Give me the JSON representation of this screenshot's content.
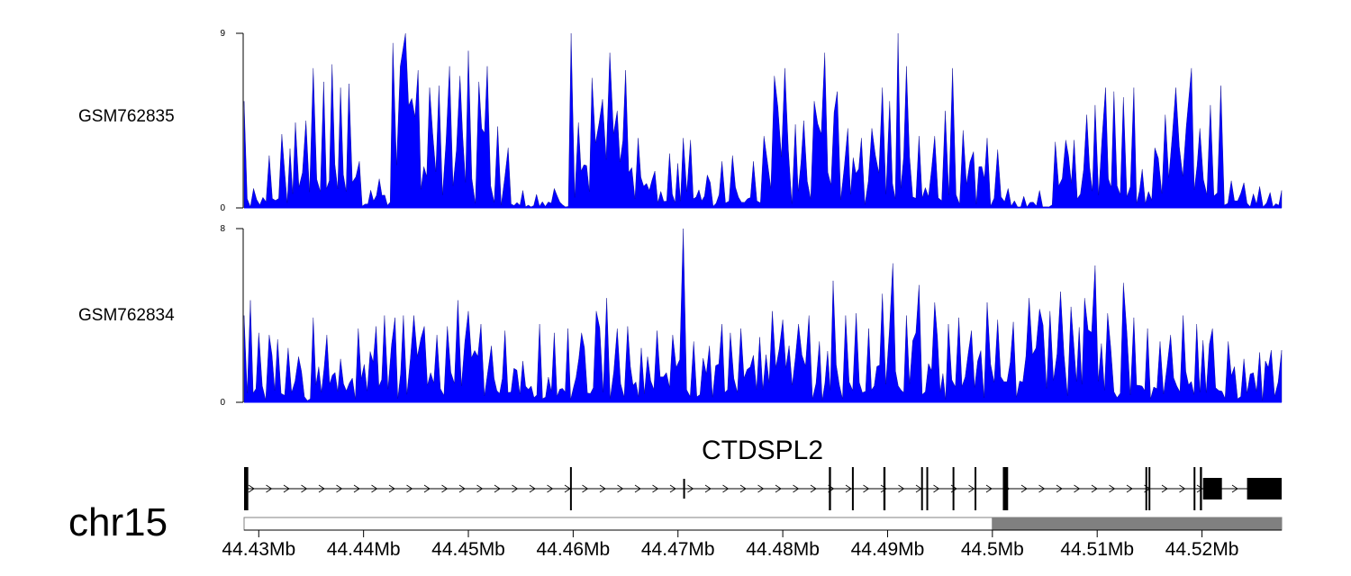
{
  "chart_data": {
    "type": "area",
    "chromosome": "chr15",
    "x_range_mb": [
      44.4286,
      44.5276
    ],
    "x_ticks": [
      {
        "value": 44.43,
        "label": "44.43Mb"
      },
      {
        "value": 44.44,
        "label": "44.44Mb"
      },
      {
        "value": 44.45,
        "label": "44.45Mb"
      },
      {
        "value": 44.46,
        "label": "44.46Mb"
      },
      {
        "value": 44.47,
        "label": "44.47Mb"
      },
      {
        "value": 44.48,
        "label": "44.48Mb"
      },
      {
        "value": 44.49,
        "label": "44.49Mb"
      },
      {
        "value": 44.5,
        "label": "44.5Mb"
      },
      {
        "value": 44.51,
        "label": "44.51Mb"
      },
      {
        "value": 44.52,
        "label": "44.52Mb"
      }
    ],
    "tracks": [
      {
        "name": "GSM762835",
        "ylim": [
          0,
          9
        ],
        "y_ticks": [
          "0",
          "9"
        ],
        "fill_color": "#0000ff",
        "peaks": [
          [
            44.4286,
            5.5
          ],
          [
            44.4295,
            1.0
          ],
          [
            44.431,
            2.7
          ],
          [
            44.4322,
            3.8
          ],
          [
            44.4335,
            4.4
          ],
          [
            44.4345,
            4.5
          ],
          [
            44.4352,
            7.2
          ],
          [
            44.4362,
            6.5
          ],
          [
            44.437,
            7.4
          ],
          [
            44.4378,
            6.2
          ],
          [
            44.4386,
            6.4
          ],
          [
            44.4396,
            2.4
          ],
          [
            44.4415,
            1.5
          ],
          [
            44.4428,
            8.5
          ],
          [
            44.4435,
            7.3
          ],
          [
            44.444,
            9.0
          ],
          [
            44.4452,
            7.1
          ],
          [
            44.4463,
            6.2
          ],
          [
            44.4472,
            6.3
          ],
          [
            44.4482,
            7.3
          ],
          [
            44.4492,
            6.8
          ],
          [
            44.45,
            8.1
          ],
          [
            44.451,
            6.5
          ],
          [
            44.4518,
            7.3
          ],
          [
            44.4528,
            4.2
          ],
          [
            44.4538,
            3.1
          ],
          [
            44.4552,
            0.9
          ],
          [
            44.4565,
            0.7
          ],
          [
            44.4582,
            1.0
          ],
          [
            44.4598,
            9.0
          ],
          [
            44.4605,
            4.4
          ],
          [
            44.4618,
            6.7
          ],
          [
            44.4628,
            5.6
          ],
          [
            44.4635,
            8.0
          ],
          [
            44.4642,
            5.0
          ],
          [
            44.465,
            7.1
          ],
          [
            44.4662,
            3.6
          ],
          [
            44.4678,
            1.9
          ],
          [
            44.4692,
            2.8
          ],
          [
            44.4705,
            3.6
          ],
          [
            44.4712,
            3.5
          ],
          [
            44.4728,
            1.7
          ],
          [
            44.4742,
            2.4
          ],
          [
            44.4752,
            2.7
          ],
          [
            44.4772,
            2.4
          ],
          [
            44.4782,
            3.7
          ],
          [
            44.4792,
            6.8
          ],
          [
            44.4802,
            7.2
          ],
          [
            44.4812,
            4.3
          ],
          [
            44.482,
            4.5
          ],
          [
            44.483,
            5.5
          ],
          [
            44.484,
            8.0
          ],
          [
            44.4852,
            6.0
          ],
          [
            44.4862,
            4.1
          ],
          [
            44.4875,
            3.6
          ],
          [
            44.4885,
            4.1
          ],
          [
            44.4895,
            6.2
          ],
          [
            44.4902,
            5.5
          ],
          [
            44.491,
            9.0
          ],
          [
            44.4918,
            7.3
          ],
          [
            44.493,
            3.7
          ],
          [
            44.4945,
            3.7
          ],
          [
            44.4955,
            5.0
          ],
          [
            44.4962,
            7.2
          ],
          [
            44.4972,
            4.0
          ],
          [
            44.4982,
            2.9
          ],
          [
            44.4995,
            3.6
          ],
          [
            44.5005,
            3.0
          ],
          [
            44.5015,
            1.0
          ],
          [
            44.503,
            0.6
          ],
          [
            44.5045,
            0.9
          ],
          [
            44.506,
            3.4
          ],
          [
            44.507,
            3.5
          ],
          [
            44.5078,
            3.5
          ],
          [
            44.509,
            4.8
          ],
          [
            44.5098,
            5.3
          ],
          [
            44.5108,
            6.2
          ],
          [
            44.5116,
            6.0
          ],
          [
            44.5125,
            5.7
          ],
          [
            44.5135,
            6.2
          ],
          [
            44.5143,
            2.0
          ],
          [
            44.5155,
            3.1
          ],
          [
            44.5165,
            4.8
          ],
          [
            44.5175,
            6.2
          ],
          [
            44.5185,
            4.2
          ],
          [
            44.519,
            7.2
          ],
          [
            44.5198,
            4.1
          ],
          [
            44.5208,
            5.3
          ],
          [
            44.5218,
            6.3
          ],
          [
            44.5228,
            1.4
          ],
          [
            44.524,
            1.3
          ],
          [
            44.5255,
            1.1
          ],
          [
            44.5265,
            0.8
          ],
          [
            44.5276,
            0.9
          ]
        ]
      },
      {
        "name": "GSM762834",
        "ylim": [
          0,
          8
        ],
        "y_ticks": [
          "0",
          "8"
        ],
        "fill_color": "#0000ff",
        "peaks": [
          [
            44.4286,
            4.0
          ],
          [
            44.4292,
            4.7
          ],
          [
            44.43,
            3.2
          ],
          [
            44.431,
            3.1
          ],
          [
            44.4318,
            2.9
          ],
          [
            44.4328,
            2.5
          ],
          [
            44.4338,
            2.1
          ],
          [
            44.4352,
            3.9
          ],
          [
            44.4365,
            3.1
          ],
          [
            44.4378,
            2.0
          ],
          [
            44.4395,
            3.4
          ],
          [
            44.4412,
            3.5
          ],
          [
            44.442,
            4.0
          ],
          [
            44.443,
            3.9
          ],
          [
            44.4438,
            4.0
          ],
          [
            44.4448,
            4.0
          ],
          [
            44.4458,
            3.5
          ],
          [
            44.447,
            3.1
          ],
          [
            44.448,
            3.5
          ],
          [
            44.449,
            4.7
          ],
          [
            44.45,
            4.2
          ],
          [
            44.4512,
            3.6
          ],
          [
            44.4522,
            2.6
          ],
          [
            44.4535,
            3.3
          ],
          [
            44.4552,
            1.9
          ],
          [
            44.4568,
            3.6
          ],
          [
            44.4582,
            3.2
          ],
          [
            44.4595,
            3.4
          ],
          [
            44.4608,
            3.2
          ],
          [
            44.4622,
            4.2
          ],
          [
            44.4632,
            4.8
          ],
          [
            44.4642,
            3.4
          ],
          [
            44.4652,
            3.5
          ],
          [
            44.4665,
            2.5
          ],
          [
            44.468,
            3.3
          ],
          [
            44.4695,
            3.1
          ],
          [
            44.4705,
            8.0
          ],
          [
            44.4715,
            2.8
          ],
          [
            44.473,
            2.6
          ],
          [
            44.4742,
            3.6
          ],
          [
            44.475,
            3.2
          ],
          [
            44.476,
            3.4
          ],
          [
            44.4778,
            3.0
          ],
          [
            44.479,
            4.2
          ],
          [
            44.48,
            3.8
          ],
          [
            44.4815,
            3.6
          ],
          [
            44.4825,
            4.0
          ],
          [
            44.4835,
            2.8
          ],
          [
            44.4848,
            5.6
          ],
          [
            44.486,
            4.0
          ],
          [
            44.487,
            4.1
          ],
          [
            44.4882,
            3.4
          ],
          [
            44.4895,
            5.0
          ],
          [
            44.4905,
            6.4
          ],
          [
            44.4918,
            4.0
          ],
          [
            44.493,
            5.4
          ],
          [
            44.4945,
            4.6
          ],
          [
            44.4958,
            3.6
          ],
          [
            44.4968,
            3.9
          ],
          [
            44.498,
            3.3
          ],
          [
            44.4995,
            4.6
          ],
          [
            44.5005,
            3.8
          ],
          [
            44.502,
            3.7
          ],
          [
            44.5035,
            4.8
          ],
          [
            44.5045,
            4.3
          ],
          [
            44.5055,
            4.2
          ],
          [
            44.5065,
            5.1
          ],
          [
            44.5075,
            4.4
          ],
          [
            44.5088,
            4.8
          ],
          [
            44.5098,
            6.3
          ],
          [
            44.511,
            4.1
          ],
          [
            44.5125,
            5.5
          ],
          [
            44.5135,
            3.9
          ],
          [
            44.5148,
            3.4
          ],
          [
            44.516,
            2.8
          ],
          [
            44.517,
            3.1
          ],
          [
            44.5182,
            4.0
          ],
          [
            44.5195,
            3.6
          ],
          [
            44.521,
            3.4
          ],
          [
            44.5225,
            2.8
          ],
          [
            44.524,
            2.0
          ],
          [
            44.5255,
            2.3
          ],
          [
            44.5266,
            2.4
          ],
          [
            44.5276,
            2.4
          ]
        ]
      }
    ],
    "gene_track": {
      "gene": "CTDSPL2",
      "color": "#000000",
      "strand": "+",
      "exons": [
        {
          "start": 44.4286,
          "end": 44.429
        },
        {
          "start": 44.4597,
          "end": 44.4598
        },
        {
          "start": 44.4705,
          "end": 44.4706
        },
        {
          "start": 44.4844,
          "end": 44.4846
        },
        {
          "start": 44.4866,
          "end": 44.4867
        },
        {
          "start": 44.4896,
          "end": 44.4898
        },
        {
          "start": 44.4932,
          "end": 44.4933
        },
        {
          "start": 44.4937,
          "end": 44.4938
        },
        {
          "start": 44.4962,
          "end": 44.4963
        },
        {
          "start": 44.4983,
          "end": 44.4984
        },
        {
          "start": 44.501,
          "end": 44.5015
        },
        {
          "start": 44.5146,
          "end": 44.5147
        },
        {
          "start": 44.5149,
          "end": 44.515
        },
        {
          "start": 44.5192,
          "end": 44.5193
        },
        {
          "start": 44.5198,
          "end": 44.52
        },
        {
          "start": 44.5201,
          "end": 44.5219
        },
        {
          "start": 44.5243,
          "end": 44.5276
        }
      ]
    },
    "region_bar": {
      "segments": [
        {
          "start": 44.4286,
          "end": 44.5,
          "color": "#ffffff"
        },
        {
          "start": 44.5,
          "end": 44.5276,
          "color": "#808080"
        }
      ]
    }
  }
}
